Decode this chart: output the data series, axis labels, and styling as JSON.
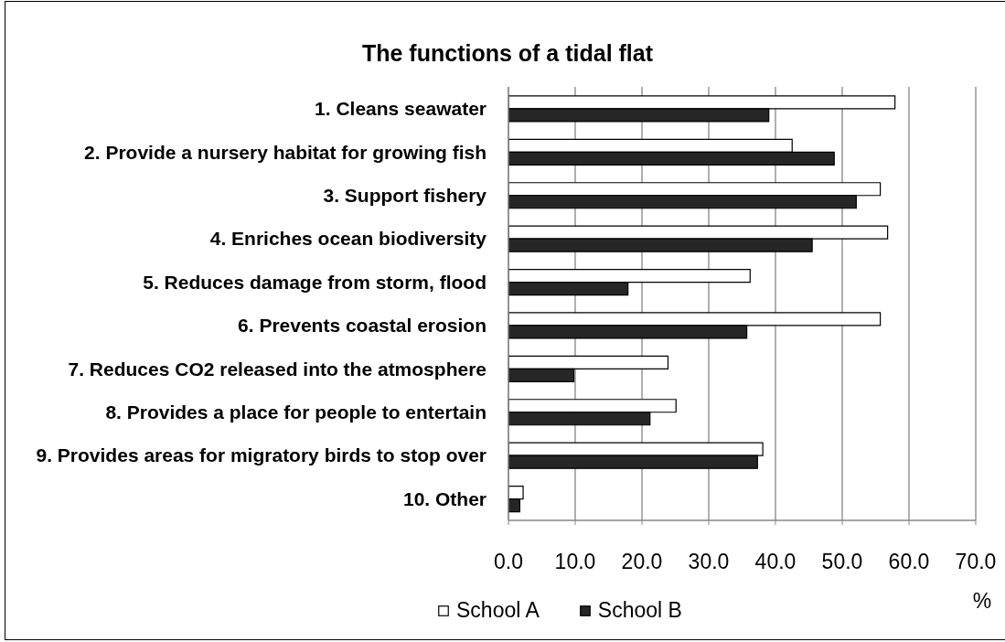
{
  "chart_data": {
    "type": "bar",
    "orientation": "horizontal",
    "title": "The functions of a tidal flat",
    "xlabel": "%",
    "categories": [
      "1. Cleans seawater",
      "2. Provide a nursery habitat for growing fish",
      "3. Support fishery",
      "4. Enriches ocean biodiversity",
      "5. Reduces damage from storm, flood",
      "6. Prevents coastal erosion",
      "7. Reduces CO2 released into the atmosphere",
      "8. Provides a place for people to entertain",
      "9. Provides areas for migratory birds to stop over",
      "10. Other"
    ],
    "series": [
      {
        "name": "School A",
        "color": "#ffffff",
        "values": [
          57.9,
          42.5,
          55.7,
          56.8,
          36.2,
          55.7,
          23.9,
          25.1,
          38.1,
          2.2
        ]
      },
      {
        "name": "School B",
        "color": "#262626",
        "values": [
          39.0,
          48.8,
          52.1,
          45.5,
          17.9,
          35.7,
          9.8,
          21.2,
          37.3,
          1.7
        ]
      }
    ],
    "xlim": [
      0,
      70
    ],
    "xticks": [
      {
        "value": 0,
        "label": "0.0"
      },
      {
        "value": 10,
        "label": "10.0"
      },
      {
        "value": 20,
        "label": "20.0"
      },
      {
        "value": 30,
        "label": "30.0"
      },
      {
        "value": 40,
        "label": "40.0"
      },
      {
        "value": 50,
        "label": "50.0"
      },
      {
        "value": 60,
        "label": "60.0"
      },
      {
        "value": 70,
        "label": "70.0"
      }
    ],
    "grid": "x",
    "legend": "bottom"
  }
}
